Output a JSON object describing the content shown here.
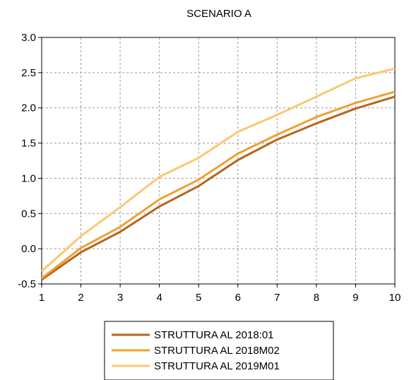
{
  "chart_data": {
    "type": "line",
    "title": "SCENARIO A",
    "xlabel": "",
    "ylabel": "",
    "x": [
      1,
      2,
      3,
      4,
      5,
      6,
      7,
      8,
      9,
      10
    ],
    "xlim": [
      1,
      10
    ],
    "ylim": [
      -0.5,
      3.0
    ],
    "yticks": [
      "-0.5",
      "0.0",
      "0.5",
      "1.0",
      "1.5",
      "2.0",
      "2.5",
      "3.0"
    ],
    "xticks": [
      "1",
      "2",
      "3",
      "4",
      "5",
      "6",
      "7",
      "8",
      "9",
      "10"
    ],
    "grid": true,
    "legend_position": "bottom",
    "series": [
      {
        "name": "STRUTTURA AL 2018:01",
        "color": "#b5651d",
        "values": [
          -0.44,
          -0.05,
          0.24,
          0.6,
          0.89,
          1.26,
          1.55,
          1.78,
          1.99,
          2.16
        ]
      },
      {
        "name": "STRUTTURA AL 2018M02",
        "color": "#f0a030",
        "values": [
          -0.42,
          0.01,
          0.31,
          0.7,
          0.98,
          1.35,
          1.62,
          1.87,
          2.07,
          2.23
        ]
      },
      {
        "name": "STRUTTURA AL 2019M01",
        "color": "#fcc770",
        "values": [
          -0.32,
          0.18,
          0.59,
          1.02,
          1.29,
          1.66,
          1.9,
          2.16,
          2.42,
          2.56
        ]
      }
    ]
  }
}
